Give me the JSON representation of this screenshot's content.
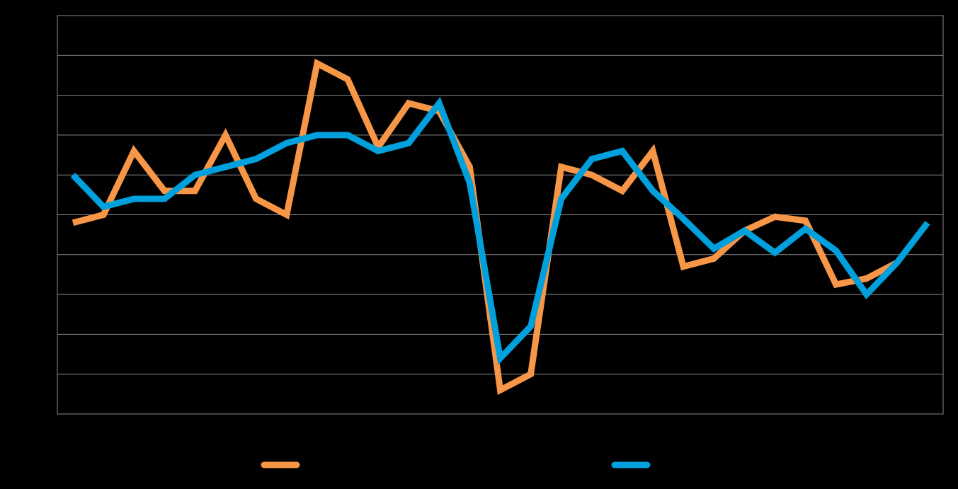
{
  "chart_data": {
    "type": "line",
    "title": "",
    "xlabel": "",
    "ylabel": "",
    "x": [
      1,
      2,
      3,
      4,
      5,
      6,
      7,
      8,
      9,
      10,
      11,
      12,
      13,
      14,
      15,
      16,
      17,
      18,
      19,
      20,
      21,
      22,
      23,
      24,
      25,
      26,
      27,
      28,
      29
    ],
    "ylim": [
      0,
      10
    ],
    "grid": true,
    "legend_position": "bottom",
    "series": [
      {
        "name": "",
        "color": "#F79646",
        "values": [
          4.8,
          5.0,
          6.6,
          5.6,
          5.6,
          7.0,
          5.4,
          5.0,
          8.8,
          8.4,
          6.7,
          7.8,
          7.6,
          6.2,
          0.6,
          1.0,
          6.2,
          6.0,
          5.6,
          6.6,
          3.7,
          3.9,
          4.6,
          4.95,
          4.85,
          3.25,
          3.4,
          3.8,
          null
        ]
      },
      {
        "name": "",
        "color": "#00A0DD",
        "values": [
          6.0,
          5.2,
          5.4,
          5.4,
          6.0,
          6.2,
          6.4,
          6.8,
          7.0,
          7.0,
          6.6,
          6.8,
          7.8,
          5.8,
          1.4,
          2.2,
          5.4,
          6.4,
          6.6,
          5.6,
          4.9,
          4.15,
          4.6,
          4.05,
          4.65,
          4.1,
          3.0,
          3.8,
          4.8
        ]
      }
    ]
  }
}
